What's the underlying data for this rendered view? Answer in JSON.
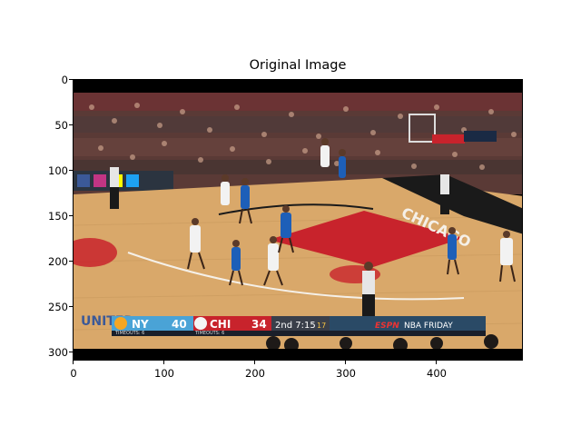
{
  "figure": {
    "title": "Original Image",
    "x_ticks": [
      "0",
      "100",
      "200",
      "300",
      "400"
    ],
    "y_ticks": [
      "0",
      "50",
      "100",
      "150",
      "200",
      "250",
      "300"
    ]
  },
  "scene": {
    "description_tags": [
      "basketball-game",
      "arena",
      "chicago-bulls-court"
    ],
    "court_text_left": "UNITED",
    "court_text_right": "CHICAGO",
    "scorebug": {
      "away_team": "NY",
      "away_score": "40",
      "away_timeouts": "TIMEOUTS: 6",
      "home_team": "CHI",
      "home_score": "34",
      "home_timeouts": "TIMEOUTS: 6",
      "period_clock": "2nd 7:15",
      "shot_clock": "17",
      "network": "ESPN",
      "program": "NBA FRIDAY"
    },
    "colors": {
      "court_wood": "#d9a86a",
      "paint_red": "#c8232c",
      "knicks_blue": "#1d5fb8",
      "bulls_white": "#f2f2f2",
      "scorebar_blue": "#4aa3d6",
      "scorebar_red": "#c8232c"
    }
  }
}
